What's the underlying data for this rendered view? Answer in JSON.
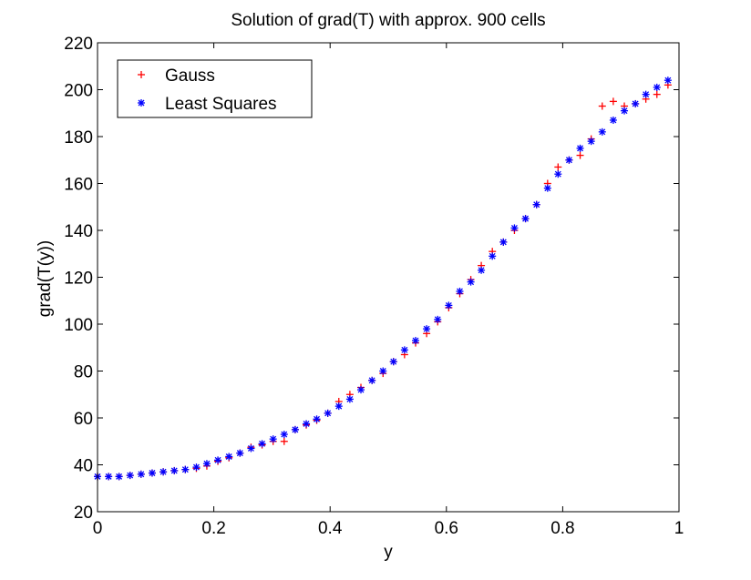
{
  "chart_data": {
    "type": "scatter",
    "title": "Solution of grad(T) with approx. 900 cells",
    "xlabel": "y",
    "ylabel": "grad(T(y))",
    "xlim": [
      0,
      1
    ],
    "ylim": [
      20,
      220
    ],
    "xticks": [
      "0",
      "0.2",
      "0.4",
      "0.6",
      "0.8",
      "1"
    ],
    "yticks": [
      "20",
      "40",
      "60",
      "80",
      "100",
      "120",
      "140",
      "160",
      "180",
      "200",
      "220"
    ],
    "grid": false,
    "legend_position": "top-left",
    "series": [
      {
        "name": "Gauss",
        "color": "#ff0000",
        "marker": "plus",
        "x": [
          0.0,
          0.019,
          0.037,
          0.056,
          0.075,
          0.094,
          0.113,
          0.132,
          0.151,
          0.17,
          0.188,
          0.207,
          0.226,
          0.245,
          0.264,
          0.283,
          0.302,
          0.321,
          0.34,
          0.359,
          0.377,
          0.396,
          0.415,
          0.434,
          0.453,
          0.472,
          0.491,
          0.509,
          0.528,
          0.547,
          0.566,
          0.585,
          0.604,
          0.623,
          0.642,
          0.66,
          0.679,
          0.698,
          0.717,
          0.736,
          0.755,
          0.774,
          0.792,
          0.811,
          0.83,
          0.849,
          0.868,
          0.887,
          0.906,
          0.925,
          0.943,
          0.962,
          0.981
        ],
        "y": [
          35,
          35,
          35,
          35.5,
          36,
          36.5,
          37,
          37.5,
          38,
          38.5,
          39.5,
          41.5,
          43,
          45,
          47.5,
          48.5,
          50,
          50,
          55,
          57,
          59,
          62,
          67,
          70,
          73,
          76,
          79,
          84,
          87,
          92,
          96,
          101,
          107,
          113,
          119,
          125,
          131,
          135,
          140,
          145,
          151,
          160,
          167,
          170,
          172,
          179,
          193,
          195,
          193,
          194,
          196,
          198,
          202
        ]
      },
      {
        "name": "Least Squares",
        "color": "#0000ff",
        "marker": "asterisk",
        "x": [
          0.0,
          0.019,
          0.037,
          0.056,
          0.075,
          0.094,
          0.113,
          0.132,
          0.151,
          0.17,
          0.188,
          0.207,
          0.226,
          0.245,
          0.264,
          0.283,
          0.302,
          0.321,
          0.34,
          0.359,
          0.377,
          0.396,
          0.415,
          0.434,
          0.453,
          0.472,
          0.491,
          0.509,
          0.528,
          0.547,
          0.566,
          0.585,
          0.604,
          0.623,
          0.642,
          0.66,
          0.679,
          0.698,
          0.717,
          0.736,
          0.755,
          0.774,
          0.792,
          0.811,
          0.83,
          0.849,
          0.868,
          0.887,
          0.906,
          0.925,
          0.943,
          0.962,
          0.981
        ],
        "y": [
          35,
          35,
          35,
          35.5,
          36,
          36.5,
          37,
          37.5,
          38,
          39,
          40.5,
          42,
          43.5,
          45,
          47,
          49,
          51,
          53,
          55,
          57.5,
          59.5,
          62,
          65,
          68,
          72,
          76,
          80,
          84,
          89,
          93,
          98,
          102,
          108,
          114,
          118,
          123,
          129,
          135,
          141,
          145,
          151,
          158,
          164,
          170,
          175,
          178,
          182,
          187,
          191,
          194,
          198,
          201,
          204
        ]
      }
    ]
  }
}
